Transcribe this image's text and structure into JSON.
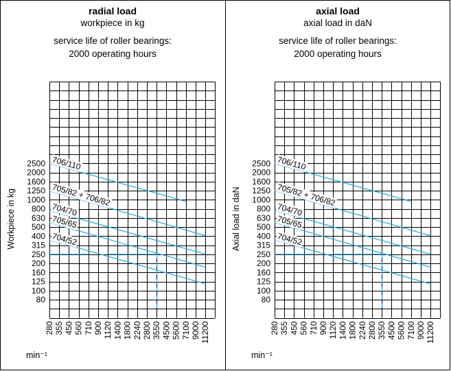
{
  "x_unit_label": "min⁻¹",
  "y_ticks": [
    "2500",
    "2000",
    "1600",
    "1250",
    "1000",
    "800",
    "630",
    "500",
    "400",
    "315",
    "250",
    "200",
    "160",
    "125",
    "100",
    "80"
  ],
  "x_ticks": [
    "280",
    "355",
    "450",
    "560",
    "710",
    "900",
    "1120",
    "1400",
    "1800",
    "2240",
    "2800",
    "3550",
    "4500",
    "5600",
    "7100",
    "9000",
    "11200"
  ],
  "colors": {
    "line": "#29aee0",
    "grid": "#000000"
  },
  "chart_data": [
    {
      "type": "line",
      "title": "radial load",
      "subtitle": "workpiece in kg",
      "note_line1": "service life of roller bearings:",
      "note_line2": "2000 operating hours",
      "ylabel": "Workpiece in kg",
      "xlabel": "min⁻¹",
      "x_scale": "log",
      "y_scale": "log",
      "grid": true,
      "series": [
        {
          "name": "706/110",
          "x": [
            280,
            7100
          ],
          "y": [
            2500,
            950
          ]
        },
        {
          "name": "705/82 + 706/82",
          "x": [
            280,
            11200
          ],
          "y": [
            1250,
            400
          ]
        },
        {
          "name": "704/70",
          "x": [
            280,
            11200
          ],
          "y": [
            760,
            250
          ]
        },
        {
          "name": "705/65",
          "x": [
            280,
            11200
          ],
          "y": [
            560,
            180
          ]
        },
        {
          "name": "704/52",
          "x": [
            280,
            11200
          ],
          "y": [
            360,
            118
          ]
        }
      ],
      "annotations": [
        {
          "type": "solid",
          "x": [
            280,
            710
          ],
          "y": [
            250,
            250
          ]
        },
        {
          "type": "solid",
          "x": [
            1120,
            3550
          ],
          "y": [
            250,
            250
          ]
        },
        {
          "type": "dashed",
          "x": [
            3550,
            3550
          ],
          "y": [
            250,
            60
          ]
        }
      ]
    },
    {
      "type": "line",
      "title": "axial load",
      "subtitle": "axial load in daN",
      "note_line1": "service life of roller bearings:",
      "note_line2": "2000 operating hours",
      "ylabel": "Axial load in daN",
      "xlabel": "min⁻¹",
      "x_scale": "log",
      "y_scale": "log",
      "grid": true,
      "series": [
        {
          "name": "706/110",
          "x": [
            280,
            7100
          ],
          "y": [
            2500,
            950
          ]
        },
        {
          "name": "705/82 + 706/82",
          "x": [
            280,
            11200
          ],
          "y": [
            1250,
            400
          ]
        },
        {
          "name": "704/70",
          "x": [
            280,
            11200
          ],
          "y": [
            760,
            250
          ]
        },
        {
          "name": "705/65",
          "x": [
            280,
            11200
          ],
          "y": [
            560,
            180
          ]
        },
        {
          "name": "704/52",
          "x": [
            280,
            11200
          ],
          "y": [
            360,
            118
          ]
        }
      ],
      "annotations": [
        {
          "type": "solid",
          "x": [
            280,
            710
          ],
          "y": [
            250,
            250
          ]
        },
        {
          "type": "solid",
          "x": [
            1120,
            3550
          ],
          "y": [
            250,
            250
          ]
        },
        {
          "type": "dashed",
          "x": [
            3550,
            3550
          ],
          "y": [
            250,
            60
          ]
        }
      ]
    }
  ]
}
